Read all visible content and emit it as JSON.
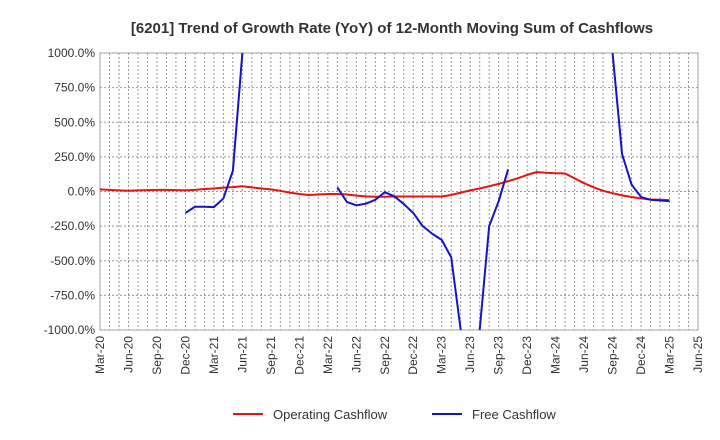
{
  "chart_data": {
    "type": "line",
    "title": "[6201]  Trend of Growth Rate (YoY) of 12-Month Moving Sum of Cashflows",
    "xlabel": "",
    "ylabel": "",
    "ylim": [
      -1000,
      1000
    ],
    "yticks": [
      "1000.0%",
      "750.0%",
      "500.0%",
      "250.0%",
      "0.0%",
      "-250.0%",
      "-500.0%",
      "-750.0%",
      "-1000.0%"
    ],
    "ytick_values": [
      1000,
      750,
      500,
      250,
      0,
      -250,
      -500,
      -750,
      -1000
    ],
    "xticks": [
      "Mar-20",
      "Jun-20",
      "Sep-20",
      "Dec-20",
      "Mar-21",
      "Jun-21",
      "Sep-21",
      "Dec-21",
      "Mar-22",
      "Jun-22",
      "Sep-22",
      "Dec-22",
      "Mar-23",
      "Jun-23",
      "Sep-23",
      "Dec-23",
      "Mar-24",
      "Jun-24",
      "Sep-24",
      "Dec-24",
      "Mar-25",
      "Jun-25"
    ],
    "x": [
      "Mar-20",
      "Apr-20",
      "May-20",
      "Jun-20",
      "Jul-20",
      "Aug-20",
      "Sep-20",
      "Oct-20",
      "Nov-20",
      "Dec-20",
      "Jan-21",
      "Feb-21",
      "Mar-21",
      "Apr-21",
      "May-21",
      "Jun-21",
      "Jul-21",
      "Aug-21",
      "Sep-21",
      "Oct-21",
      "Nov-21",
      "Dec-21",
      "Jan-22",
      "Feb-22",
      "Mar-22",
      "Apr-22",
      "May-22",
      "Jun-22",
      "Jul-22",
      "Aug-22",
      "Sep-22",
      "Oct-22",
      "Nov-22",
      "Dec-22",
      "Jan-23",
      "Feb-23",
      "Mar-23",
      "Apr-23",
      "May-23",
      "Jun-23",
      "Jul-23",
      "Aug-23",
      "Sep-23",
      "Oct-23",
      "Nov-23",
      "Dec-23",
      "Jan-24",
      "Feb-24",
      "Mar-24",
      "Apr-24",
      "May-24",
      "Jun-24",
      "Jul-24",
      "Aug-24",
      "Sep-24",
      "Oct-24",
      "Nov-24",
      "Dec-24",
      "Jan-25",
      "Feb-25",
      "Mar-25",
      "Apr-25",
      "May-25",
      "Jun-25"
    ],
    "grid": true,
    "legend_position": "bottom",
    "series": [
      {
        "name": "Operating Cashflow",
        "color": "#e8140f",
        "values": [
          15,
          12,
          8,
          5,
          8,
          10,
          12,
          12,
          10,
          8,
          12,
          18,
          22,
          28,
          32,
          38,
          30,
          22,
          15,
          5,
          -8,
          -18,
          -25,
          -22,
          -18,
          -18,
          -22,
          -30,
          -35,
          -38,
          -38,
          -36,
          -36,
          -36,
          -36,
          -36,
          -36,
          -25,
          -8,
          8,
          22,
          38,
          55,
          75,
          95,
          120,
          140,
          135,
          132,
          130,
          95,
          60,
          30,
          5,
          -12,
          -28,
          -40,
          -50,
          -58,
          -60,
          -62,
          null,
          null,
          null
        ]
      },
      {
        "name": "Free Cashflow",
        "color": "#1414c8",
        "values": [
          null,
          null,
          null,
          null,
          null,
          null,
          null,
          null,
          null,
          -155,
          -110,
          -110,
          -113,
          -50,
          150,
          1000,
          null,
          null,
          null,
          null,
          null,
          null,
          null,
          null,
          null,
          30,
          -75,
          -100,
          -88,
          -60,
          -5,
          -35,
          -90,
          -155,
          -250,
          -305,
          -350,
          -475,
          -1000,
          null,
          -1000,
          -250,
          -70,
          160,
          null,
          null,
          null,
          null,
          null,
          null,
          null,
          null,
          null,
          null,
          1000,
          270,
          50,
          -40,
          -60,
          -65,
          -70,
          null,
          null,
          null
        ]
      }
    ]
  }
}
